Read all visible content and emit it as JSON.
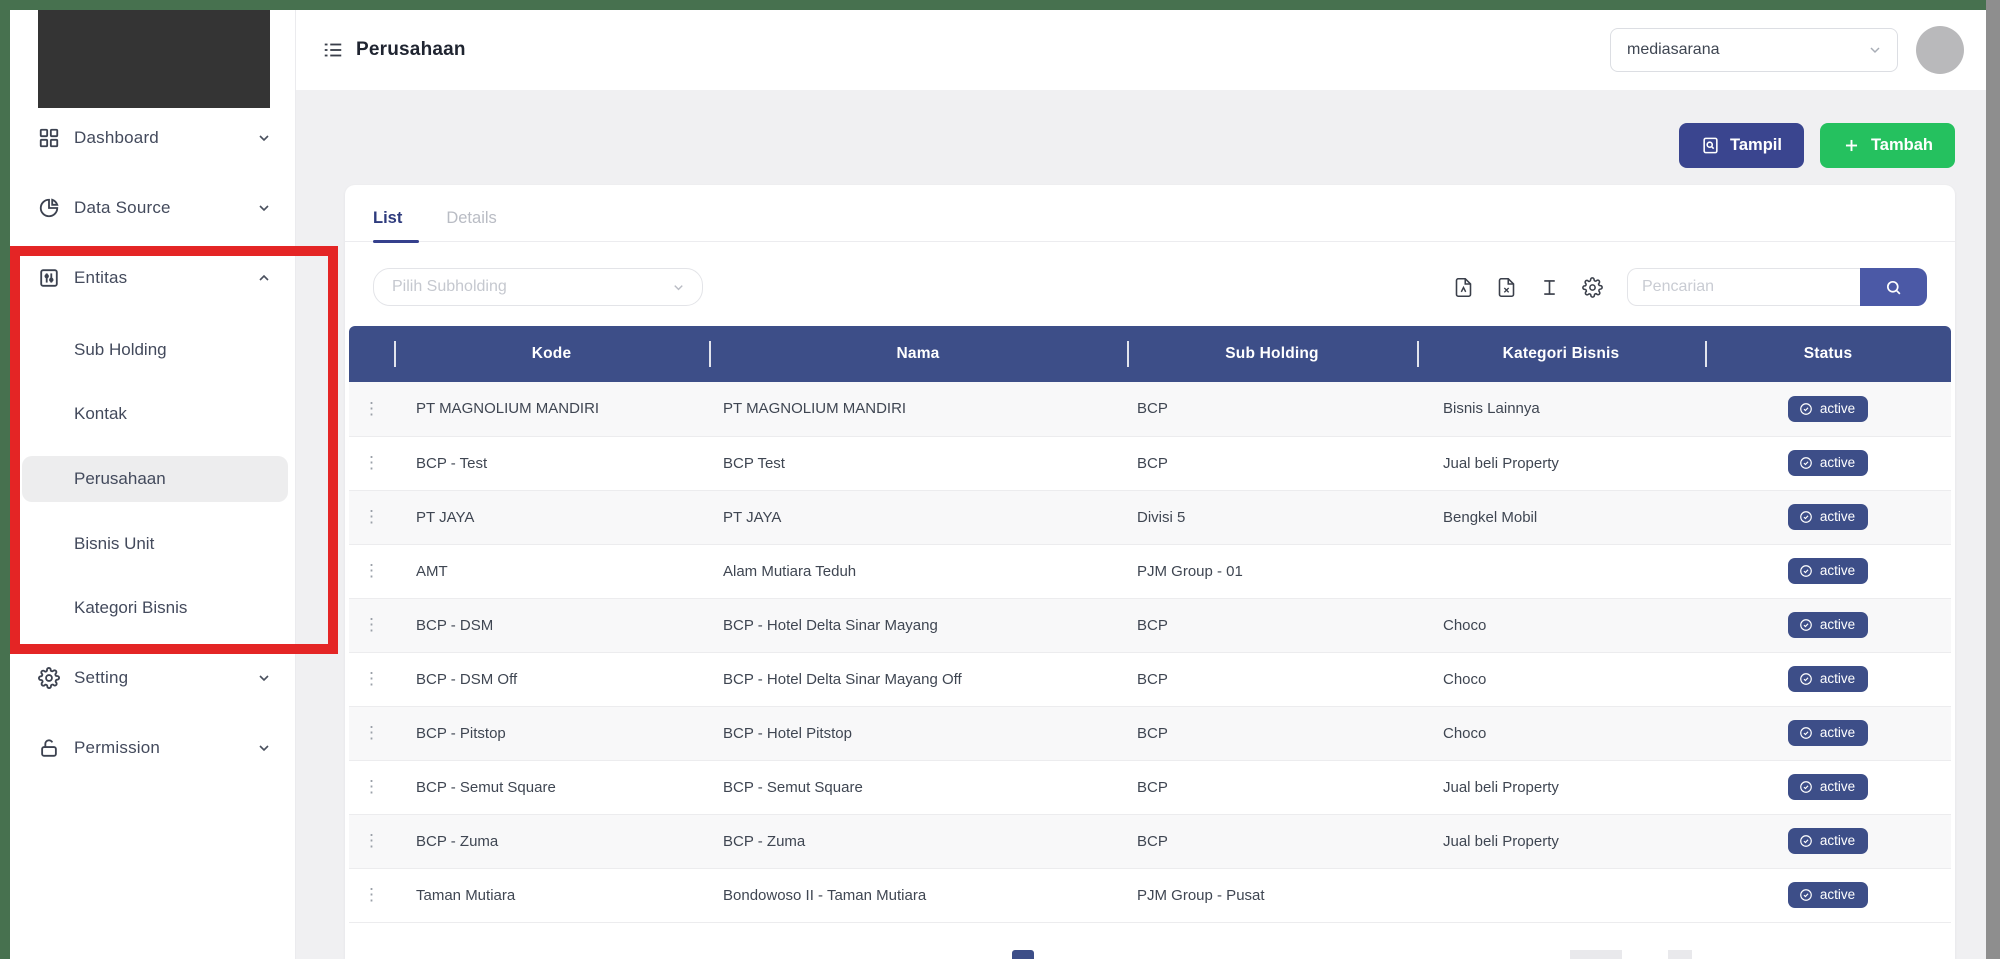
{
  "header": {
    "title": "Perusahaan",
    "tenant_select": {
      "value": "mediasarana"
    }
  },
  "sidebar": {
    "items": [
      {
        "label": "Dashboard",
        "icon": "grid-icon",
        "state": "collapsed"
      },
      {
        "label": "Data Source",
        "icon": "pie-chart-icon",
        "state": "collapsed"
      },
      {
        "label": "Entitas",
        "icon": "sliders-icon",
        "state": "expanded",
        "children": [
          {
            "label": "Sub Holding"
          },
          {
            "label": "Kontak"
          },
          {
            "label": "Perusahaan",
            "active": true
          },
          {
            "label": "Bisnis Unit"
          },
          {
            "label": "Kategori Bisnis"
          }
        ]
      },
      {
        "label": "Setting",
        "icon": "gear-icon",
        "state": "collapsed"
      },
      {
        "label": "Permission",
        "icon": "lock-open-icon",
        "state": "collapsed"
      }
    ]
  },
  "annotation": {
    "type": "highlight-box",
    "color": "#e42525",
    "around": "Entitas menu group"
  },
  "actions": {
    "tampil_label": "Tampil",
    "tambah_label": "Tambah"
  },
  "tabs": [
    {
      "label": "List",
      "active": true
    },
    {
      "label": "Details",
      "active": false
    }
  ],
  "filters": {
    "subholding_placeholder": "Pilih Subholding",
    "search_placeholder": "Pencarian",
    "tool_icons": [
      "file-pdf-icon",
      "file-excel-icon",
      "text-height-icon",
      "gear-icon",
      "search-icon"
    ]
  },
  "table": {
    "columns": [
      "Kode",
      "Nama",
      "Sub Holding",
      "Kategori Bisnis",
      "Status"
    ],
    "rows": [
      {
        "kode": "PT MAGNOLIUM MANDIRI",
        "nama": "PT MAGNOLIUM MANDIRI",
        "sub_holding": "BCP",
        "kategori_bisnis": "Bisnis Lainnya",
        "status": "active"
      },
      {
        "kode": "BCP - Test",
        "nama": "BCP Test",
        "sub_holding": "BCP",
        "kategori_bisnis": "Jual beli Property",
        "status": "active"
      },
      {
        "kode": "PT JAYA",
        "nama": "PT JAYA",
        "sub_holding": "Divisi 5",
        "kategori_bisnis": "Bengkel Mobil",
        "status": "active"
      },
      {
        "kode": "AMT",
        "nama": "Alam Mutiara Teduh",
        "sub_holding": "PJM Group - 01",
        "kategori_bisnis": "",
        "status": "active"
      },
      {
        "kode": "BCP - DSM",
        "nama": "BCP - Hotel Delta Sinar Mayang",
        "sub_holding": "BCP",
        "kategori_bisnis": "Choco",
        "status": "active"
      },
      {
        "kode": "BCP - DSM Off",
        "nama": "BCP - Hotel Delta Sinar Mayang Off",
        "sub_holding": "BCP",
        "kategori_bisnis": "Choco",
        "status": "active"
      },
      {
        "kode": "BCP - Pitstop",
        "nama": "BCP - Hotel Pitstop",
        "sub_holding": "BCP",
        "kategori_bisnis": "Choco",
        "status": "active"
      },
      {
        "kode": "BCP - Semut Square",
        "nama": "BCP - Semut Square",
        "sub_holding": "BCP",
        "kategori_bisnis": "Jual beli Property",
        "status": "active"
      },
      {
        "kode": "BCP - Zuma",
        "nama": "BCP - Zuma",
        "sub_holding": "BCP",
        "kategori_bisnis": "Jual beli Property",
        "status": "active"
      },
      {
        "kode": "Taman Mutiara",
        "nama": "Bondowoso II - Taman Mutiara",
        "sub_holding": "PJM Group - Pusat",
        "kategori_bisnis": "",
        "status": "active"
      }
    ]
  },
  "colors": {
    "frame_green": "#47714f",
    "right_edge_gray": "#8e8e8e",
    "navy": "#3d4e88",
    "tampil_navy": "#3a458f",
    "search_navy": "#4b59a6",
    "tambah_green": "#25c15f",
    "annotation_red": "#e42525",
    "active_tab": "#2e3b7d",
    "main_bg": "#f0f0f2"
  }
}
